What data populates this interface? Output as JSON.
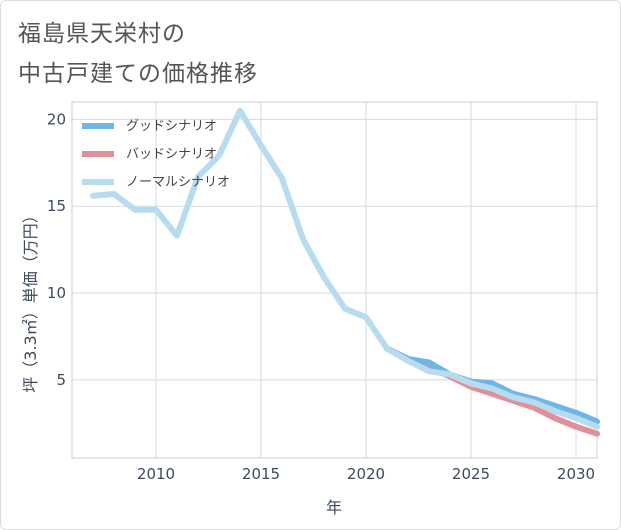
{
  "title_line_1": "福島県天栄村の",
  "title_line_2": "中古戸建ての価格推移",
  "chart_data": {
    "type": "line",
    "xlabel": "年",
    "ylabel": "坪（3.3㎡）単価（万円）",
    "xlim": [
      2006,
      2031
    ],
    "ylim": [
      0.5,
      21
    ],
    "xticks": [
      2010,
      2015,
      2020,
      2025,
      2030
    ],
    "yticks": [
      5,
      10,
      15,
      20
    ],
    "xtick_labels": [
      "2010",
      "2015",
      "2020",
      "2025",
      "2030"
    ],
    "ytick_labels": [
      "5",
      "10",
      "15",
      "20"
    ],
    "grid": true,
    "legend_position": "top-left",
    "series": [
      {
        "name": "グッドシナリオ",
        "color": "#6cb6e8",
        "x": [
          2021,
          2022,
          2023,
          2024,
          2025,
          2026,
          2027,
          2028,
          2029,
          2030,
          2031
        ],
        "y": [
          6.8,
          6.2,
          6.0,
          5.3,
          4.9,
          4.8,
          4.2,
          3.9,
          3.5,
          3.1,
          2.6
        ]
      },
      {
        "name": "バッドシナリオ",
        "color": "#e09098",
        "x": [
          2021,
          2022,
          2023,
          2024,
          2025,
          2026,
          2027,
          2028,
          2029,
          2030,
          2031
        ],
        "y": [
          6.8,
          6.2,
          5.7,
          5.2,
          4.6,
          4.2,
          3.8,
          3.4,
          2.8,
          2.3,
          1.9
        ]
      },
      {
        "name": "ノーマルシナリオ",
        "color": "#b8dcef",
        "x": [
          2007,
          2008,
          2009,
          2010,
          2011,
          2012,
          2013,
          2014,
          2015,
          2016,
          2017,
          2018,
          2019,
          2020,
          2021,
          2022,
          2023,
          2024,
          2025,
          2026,
          2027,
          2028,
          2029,
          2030,
          2031
        ],
        "y": [
          15.6,
          15.7,
          14.8,
          14.8,
          13.3,
          16.7,
          17.9,
          20.5,
          18.5,
          16.6,
          13.1,
          10.9,
          9.1,
          8.6,
          6.8,
          6.1,
          5.5,
          5.3,
          4.8,
          4.5,
          4.0,
          3.7,
          3.2,
          2.8,
          2.3
        ]
      }
    ]
  }
}
